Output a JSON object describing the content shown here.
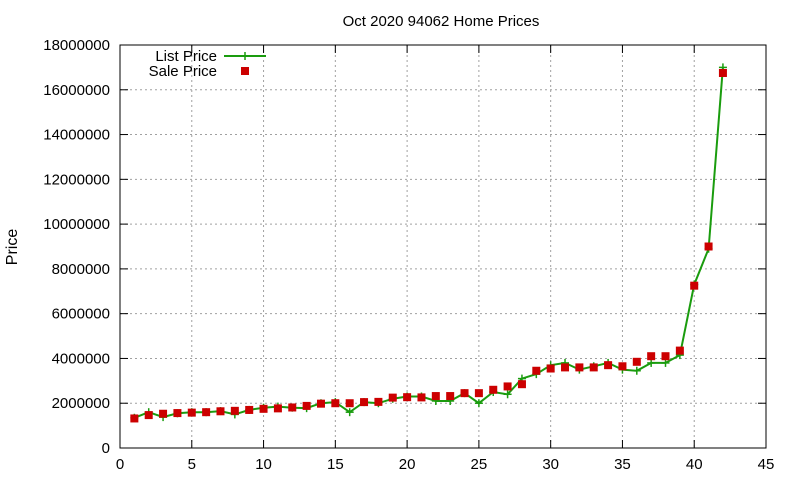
{
  "chart_data": {
    "type": "line",
    "title": "Oct 2020 94062 Home Prices",
    "xlabel": "",
    "ylabel": "Price",
    "xlim": [
      0,
      45
    ],
    "ylim": [
      0,
      18000000
    ],
    "x_ticks": [
      "0",
      "5",
      "10",
      "15",
      "20",
      "25",
      "30",
      "35",
      "40",
      "45"
    ],
    "y_ticks": [
      "0",
      "2000000",
      "4000000",
      "6000000",
      "8000000",
      "10000000",
      "12000000",
      "14000000",
      "16000000",
      "18000000"
    ],
    "grid": true,
    "legend_position": "top-left",
    "x": [
      1,
      2,
      3,
      4,
      5,
      6,
      7,
      8,
      9,
      10,
      11,
      12,
      13,
      14,
      15,
      16,
      17,
      18,
      19,
      20,
      21,
      22,
      23,
      24,
      25,
      26,
      27,
      28,
      29,
      30,
      31,
      32,
      33,
      34,
      35,
      36,
      37,
      38,
      39,
      40,
      41,
      42
    ],
    "series": [
      {
        "name": "List Price",
        "style": "line+cross",
        "color": "#1a9c0e",
        "values": [
          1350000,
          1600000,
          1380000,
          1550000,
          1600000,
          1600000,
          1650000,
          1500000,
          1700000,
          1800000,
          1850000,
          1800000,
          1780000,
          2000000,
          2050000,
          1600000,
          2050000,
          2000000,
          2200000,
          2300000,
          2300000,
          2100000,
          2100000,
          2450000,
          2000000,
          2500000,
          2400000,
          3100000,
          3300000,
          3700000,
          3800000,
          3500000,
          3650000,
          3800000,
          3500000,
          3450000,
          3800000,
          3800000,
          4150000,
          7300000,
          8900000,
          17000000
        ]
      },
      {
        "name": "Sale Price",
        "style": "square",
        "color": "#cc0000",
        "values": [
          1320000,
          1470000,
          1530000,
          1560000,
          1580000,
          1600000,
          1640000,
          1660000,
          1700000,
          1750000,
          1770000,
          1810000,
          1880000,
          1980000,
          2000000,
          2000000,
          2050000,
          2060000,
          2250000,
          2270000,
          2260000,
          2320000,
          2320000,
          2450000,
          2450000,
          2600000,
          2750000,
          2850000,
          3450000,
          3550000,
          3600000,
          3600000,
          3600000,
          3700000,
          3650000,
          3850000,
          4100000,
          4100000,
          4350000,
          7250000,
          9000000,
          16750000
        ]
      }
    ]
  }
}
